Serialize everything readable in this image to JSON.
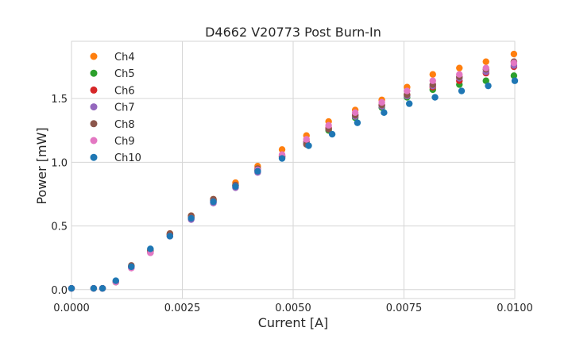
{
  "chart_data": {
    "type": "scatter",
    "title": "D4662 V20773 Post Burn-In",
    "xlabel": "Current [A]",
    "ylabel": "Power [mW]",
    "xlim": [
      0.0,
      0.01
    ],
    "ylim": [
      -0.07,
      1.95
    ],
    "xticks": [
      0.0,
      0.0025,
      0.005,
      0.0075,
      0.01
    ],
    "xtick_labels": [
      "0.0000",
      "0.0025",
      "0.0050",
      "0.0075",
      "0.0100"
    ],
    "yticks": [
      0.0,
      0.5,
      1.0,
      1.5
    ],
    "ytick_labels": [
      "0.0",
      "0.5",
      "1.0",
      "1.5"
    ],
    "grid": true,
    "legend_position": "top-left",
    "series": [
      {
        "name": "Ch4",
        "color": "#ff7f0e",
        "x": [
          0.0,
          0.0005,
          0.0007,
          0.001,
          0.00135,
          0.00178,
          0.00222,
          0.0027,
          0.0032,
          0.0037,
          0.0042,
          0.00475,
          0.0053,
          0.0058,
          0.0064,
          0.007,
          0.00757,
          0.00815,
          0.00875,
          0.00935,
          0.00998
        ],
        "y": [
          0.01,
          0.01,
          0.01,
          0.06,
          0.18,
          0.31,
          0.44,
          0.58,
          0.71,
          0.84,
          0.97,
          1.1,
          1.21,
          1.32,
          1.41,
          1.49,
          1.59,
          1.69,
          1.74,
          1.79,
          1.85
        ]
      },
      {
        "name": "Ch5",
        "color": "#2ca02c",
        "x": [
          0.0,
          0.0005,
          0.0007,
          0.001,
          0.00135,
          0.00178,
          0.00222,
          0.0027,
          0.0032,
          0.0037,
          0.0042,
          0.00475,
          0.0053,
          0.0058,
          0.0064,
          0.007,
          0.00757,
          0.00815,
          0.00875,
          0.00935,
          0.00998
        ],
        "y": [
          0.01,
          0.01,
          0.01,
          0.06,
          0.18,
          0.3,
          0.43,
          0.57,
          0.7,
          0.82,
          0.94,
          1.05,
          1.15,
          1.25,
          1.35,
          1.43,
          1.51,
          1.57,
          1.61,
          1.64,
          1.68
        ]
      },
      {
        "name": "Ch6",
        "color": "#d62728",
        "x": [
          0.0,
          0.0005,
          0.0007,
          0.001,
          0.00135,
          0.00178,
          0.00222,
          0.0027,
          0.0032,
          0.0037,
          0.0042,
          0.00475,
          0.0053,
          0.0058,
          0.0064,
          0.007,
          0.00757,
          0.00815,
          0.00875,
          0.00935,
          0.00998
        ],
        "y": [
          0.01,
          0.01,
          0.01,
          0.06,
          0.18,
          0.3,
          0.43,
          0.57,
          0.7,
          0.82,
          0.94,
          1.05,
          1.16,
          1.27,
          1.37,
          1.45,
          1.53,
          1.59,
          1.64,
          1.7,
          1.75
        ]
      },
      {
        "name": "Ch7",
        "color": "#9467bd",
        "x": [
          0.0,
          0.0005,
          0.0007,
          0.001,
          0.00135,
          0.00178,
          0.00222,
          0.0027,
          0.0032,
          0.0037,
          0.0042,
          0.00475,
          0.0053,
          0.0058,
          0.0064,
          0.007,
          0.00757,
          0.00815,
          0.00875,
          0.00935,
          0.00998
        ],
        "y": [
          0.01,
          0.01,
          0.01,
          0.06,
          0.17,
          0.29,
          0.42,
          0.55,
          0.68,
          0.8,
          0.92,
          1.04,
          1.15,
          1.26,
          1.36,
          1.44,
          1.52,
          1.6,
          1.66,
          1.71,
          1.76
        ]
      },
      {
        "name": "Ch8",
        "color": "#8c564b",
        "x": [
          0.0,
          0.0005,
          0.0007,
          0.001,
          0.00135,
          0.00178,
          0.00222,
          0.0027,
          0.0032,
          0.0037,
          0.0042,
          0.00475,
          0.0053,
          0.0058,
          0.0064,
          0.007,
          0.00757,
          0.00815,
          0.00875,
          0.00935,
          0.00998
        ],
        "y": [
          0.01,
          0.01,
          0.01,
          0.06,
          0.19,
          0.31,
          0.44,
          0.58,
          0.71,
          0.82,
          0.95,
          1.04,
          1.14,
          1.26,
          1.37,
          1.45,
          1.53,
          1.61,
          1.67,
          1.73,
          1.79
        ]
      },
      {
        "name": "Ch9",
        "color": "#e377c2",
        "x": [
          0.0,
          0.0005,
          0.0007,
          0.001,
          0.00135,
          0.00178,
          0.00222,
          0.0027,
          0.0032,
          0.0037,
          0.0042,
          0.00475,
          0.0053,
          0.0058,
          0.0064,
          0.007,
          0.00757,
          0.00815,
          0.00875,
          0.00935,
          0.00998
        ],
        "y": [
          0.01,
          0.01,
          0.01,
          0.06,
          0.17,
          0.29,
          0.42,
          0.56,
          0.69,
          0.81,
          0.94,
          1.06,
          1.18,
          1.29,
          1.39,
          1.47,
          1.56,
          1.64,
          1.69,
          1.74,
          1.78
        ]
      },
      {
        "name": "Ch10",
        "color": "#1f77b4",
        "x": [
          0.0,
          0.0005,
          0.0007,
          0.001,
          0.00135,
          0.00178,
          0.00222,
          0.0027,
          0.0032,
          0.0037,
          0.0042,
          0.00475,
          0.00535,
          0.00588,
          0.00645,
          0.00705,
          0.00762,
          0.0082,
          0.0088,
          0.0094,
          0.01
        ],
        "y": [
          0.01,
          0.01,
          0.01,
          0.07,
          0.18,
          0.32,
          0.42,
          0.56,
          0.69,
          0.81,
          0.93,
          1.03,
          1.13,
          1.22,
          1.31,
          1.39,
          1.46,
          1.51,
          1.56,
          1.6,
          1.64
        ]
      }
    ]
  }
}
